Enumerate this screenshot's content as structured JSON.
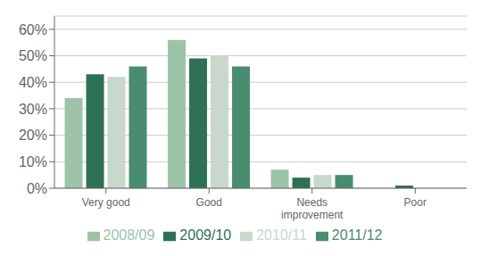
{
  "chart_data": {
    "type": "bar",
    "categories": [
      "Very good",
      "Good",
      "Needs\nimprovement",
      "Poor"
    ],
    "series": [
      {
        "name": "2008/09",
        "color": "#9DC3A8",
        "values": [
          34,
          56,
          7,
          0
        ]
      },
      {
        "name": "2009/10",
        "color": "#2E7056",
        "values": [
          43,
          49,
          4,
          1
        ]
      },
      {
        "name": "2010/11",
        "color": "#C8D9CC",
        "values": [
          42,
          50,
          5,
          0
        ]
      },
      {
        "name": "2011/12",
        "color": "#4A8C70",
        "values": [
          46,
          46,
          5,
          0
        ]
      }
    ],
    "ylim": [
      0,
      65
    ],
    "yticks": [
      {
        "value": 0,
        "label": "0%"
      },
      {
        "value": 10,
        "label": "10%"
      },
      {
        "value": 20,
        "label": "20%"
      },
      {
        "value": 30,
        "label": "30%"
      },
      {
        "value": 40,
        "label": "40%"
      },
      {
        "value": 50,
        "label": "50%"
      },
      {
        "value": 60,
        "label": "60%"
      }
    ],
    "grid": true,
    "legend": "bottom"
  }
}
